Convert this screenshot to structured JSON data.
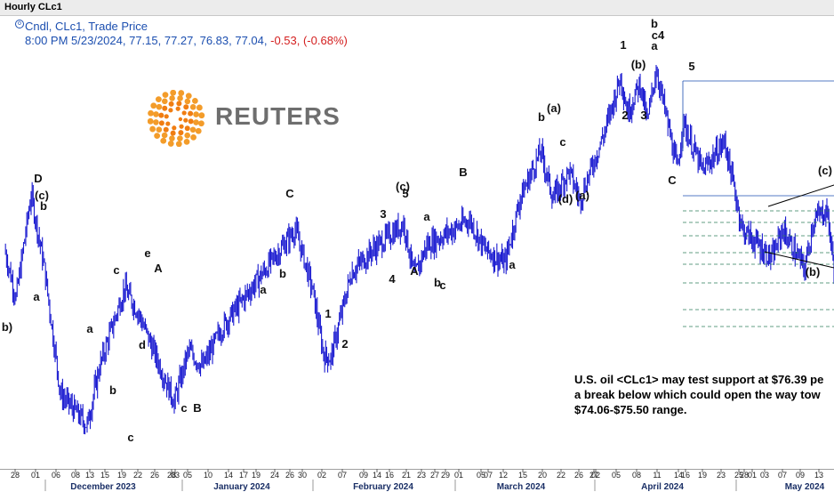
{
  "window": {
    "title": "Hourly CLc1"
  },
  "legend": {
    "series": "Cndl, CLc1, Trade Price",
    "ohlc": "8:00 PM 5/23/2024, 77.15, 77.27, 76.83, 77.04,",
    "change": "-0.53, (-0.68%)",
    "series_color": "#1c4fb0",
    "change_color": "#d42020"
  },
  "logo": {
    "text": "REUTERS",
    "icon": "reuters-dot-logo-icon"
  },
  "caption": {
    "lines": [
      "U.S. oil <CLc1> may test support at $76.39 pe",
      "a break below which could open the way tow",
      "$74.06-$75.50 range."
    ]
  },
  "chart_data": {
    "type": "candlestick",
    "symbol": "CLc1",
    "interval": "Hourly",
    "colors": {
      "candles": "#1a1ad0",
      "trendlines": "#000000",
      "levels": "#2e7d5b",
      "level_box": "#1c4fb0"
    },
    "x_ticks": [
      "28",
      "01",
      "06",
      "08",
      "13",
      "15",
      "19",
      "22",
      "26",
      "28",
      "03",
      "05",
      "10",
      "14",
      "17",
      "19",
      "24",
      "26",
      "30",
      "02",
      "07",
      "09",
      "14",
      "16",
      "21",
      "23",
      "27",
      "29",
      "01",
      "05",
      "07",
      "12",
      "15",
      "20",
      "22",
      "26",
      "27",
      "02",
      "05",
      "08",
      "11",
      "14",
      "16",
      "19",
      "23",
      "25",
      "28",
      "01",
      "03",
      "07",
      "09",
      "13",
      "15",
      "19",
      "21"
    ],
    "months": [
      "December 2023",
      "January 2024",
      "February 2024",
      "March 2024",
      "April 2024",
      "May 2024"
    ],
    "wave_labels": [
      "D",
      "(c)",
      "b",
      "a",
      "b)",
      "a",
      "b",
      "c",
      "c",
      "d",
      "e",
      "A",
      "c",
      "B",
      "C",
      "a",
      "b",
      "1",
      "2",
      "3",
      "4",
      "5",
      "A",
      "a",
      "b",
      "c",
      "B",
      "a",
      "b",
      "c",
      "(a)",
      "1",
      "(b)",
      "2",
      "3",
      "a",
      "b",
      "c4",
      "5",
      "C",
      "(c)",
      "(b)",
      "(a)",
      "(d)",
      "(c)"
    ],
    "path_points": [
      [
        "28 Nov",
        78.0
      ],
      [
        "30 Nov",
        75.5
      ],
      [
        "01 Dec",
        80.8
      ],
      [
        "04 Dec",
        77.0
      ],
      [
        "07 Dec",
        70.6
      ],
      [
        "13 Dec",
        69.0
      ],
      [
        "16 Dec",
        72.0
      ],
      [
        "22 Dec",
        76.0
      ],
      [
        "26 Dec",
        74.8
      ],
      [
        "03 Jan",
        70.2
      ],
      [
        "08 Jan",
        72.8
      ],
      [
        "12 Jan",
        72.0
      ],
      [
        "17 Jan",
        74.0
      ],
      [
        "19 Jan",
        74.5
      ],
      [
        "26 Jan",
        79.0
      ],
      [
        "29 Jan",
        77.5
      ],
      [
        "31 Jan",
        75.8
      ],
      [
        "02 Feb",
        72.6
      ],
      [
        "05 Feb",
        72.4
      ],
      [
        "09 Feb",
        76.8
      ],
      [
        "15 Feb",
        78.0
      ],
      [
        "21 Feb",
        79.3
      ],
      [
        "23 Feb",
        76.6
      ],
      [
        "26 Feb",
        78.2
      ],
      [
        "01 Mar",
        79.5
      ],
      [
        "04 Mar",
        78.0
      ],
      [
        "08 Mar",
        77.5
      ],
      [
        "11 Mar",
        77.3
      ],
      [
        "14 Mar",
        80.6
      ],
      [
        "19 Mar",
        83.0
      ],
      [
        "22 Mar",
        80.6
      ],
      [
        "25 Mar",
        82.0
      ],
      [
        "27 Mar",
        80.5
      ],
      [
        "02 Apr",
        84.0
      ],
      [
        "05 Apr",
        86.8
      ],
      [
        "08 Apr",
        85.0
      ],
      [
        "10 Apr",
        86.5
      ],
      [
        "12 Apr",
        84.5
      ],
      [
        "15 Apr",
        87.2
      ],
      [
        "17 Apr",
        82.0
      ],
      [
        "18 Apr",
        84.5
      ],
      [
        "22 Apr",
        82.0
      ],
      [
        "25 Apr",
        83.5
      ],
      [
        "01 May",
        79.0
      ],
      [
        "07 May",
        77.5
      ],
      [
        "10 May",
        79.0
      ],
      [
        "14 May",
        77.0
      ],
      [
        "17 May",
        79.5
      ],
      [
        "20 May",
        80.0
      ],
      [
        "23 May",
        77.04
      ]
    ],
    "horizontal_levels": 10,
    "grid": false
  }
}
